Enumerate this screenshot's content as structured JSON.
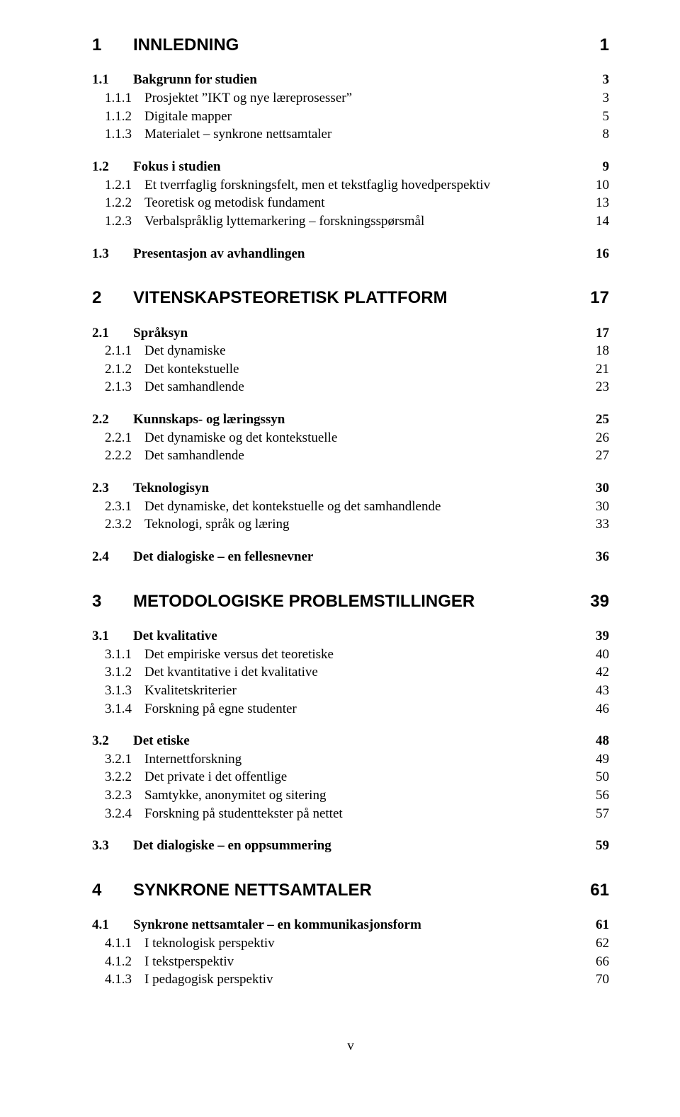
{
  "footer": "v",
  "toc": [
    {
      "level": 1,
      "num": "1",
      "title": "INNLEDNING",
      "page": "1"
    },
    {
      "level": 2,
      "num": "1.1",
      "title": "Bakgrunn for studien",
      "page": "3"
    },
    {
      "level": 3,
      "num": "1.1.1",
      "title": "Prosjektet ”IKT og nye læreprosesser”",
      "page": "3"
    },
    {
      "level": 3,
      "num": "1.1.2",
      "title": "Digitale mapper",
      "page": "5"
    },
    {
      "level": 3,
      "num": "1.1.3",
      "title": "Materialet – synkrone nettsamtaler",
      "page": "8"
    },
    {
      "level": 2,
      "num": "1.2",
      "title": "Fokus i studien",
      "page": "9"
    },
    {
      "level": 3,
      "num": "1.2.1",
      "title": "Et tverrfaglig forskningsfelt, men et tekstfaglig hovedperspektiv",
      "page": "10"
    },
    {
      "level": 3,
      "num": "1.2.2",
      "title": "Teoretisk og metodisk fundament",
      "page": "13"
    },
    {
      "level": 3,
      "num": "1.2.3",
      "title": "Verbalspråklig  lyttemarkering – forskningsspørsmål",
      "page": "14"
    },
    {
      "level": 2,
      "num": "1.3",
      "title": "Presentasjon av avhandlingen",
      "page": "16"
    },
    {
      "level": 1,
      "num": "2",
      "title": "VITENSKAPSTEORETISK PLATTFORM",
      "page": "17"
    },
    {
      "level": 2,
      "num": "2.1",
      "title": "Språksyn",
      "page": "17"
    },
    {
      "level": 3,
      "num": "2.1.1",
      "title": "Det dynamiske",
      "page": "18"
    },
    {
      "level": 3,
      "num": "2.1.2",
      "title": "Det kontekstuelle",
      "page": "21"
    },
    {
      "level": 3,
      "num": "2.1.3",
      "title": "Det samhandlende",
      "page": "23"
    },
    {
      "level": 2,
      "num": "2.2",
      "title": "Kunnskaps- og læringssyn",
      "page": "25"
    },
    {
      "level": 3,
      "num": "2.2.1",
      "title": "Det dynamiske og det kontekstuelle",
      "page": "26"
    },
    {
      "level": 3,
      "num": "2.2.2",
      "title": "Det samhandlende",
      "page": "27"
    },
    {
      "level": 2,
      "num": "2.3",
      "title": "Teknologisyn",
      "page": "30"
    },
    {
      "level": 3,
      "num": "2.3.1",
      "title": "Det dynamiske, det kontekstuelle og det samhandlende",
      "page": "30"
    },
    {
      "level": 3,
      "num": "2.3.2",
      "title": "Teknologi, språk og læring",
      "page": "33"
    },
    {
      "level": 2,
      "num": "2.4",
      "title": "Det dialogiske – en fellesnevner",
      "page": "36"
    },
    {
      "level": 1,
      "num": "3",
      "title": "METODOLOGISKE PROBLEMSTILLINGER",
      "page": "39"
    },
    {
      "level": 2,
      "num": "3.1",
      "title": "Det kvalitative",
      "page": "39"
    },
    {
      "level": 3,
      "num": "3.1.1",
      "title": "Det empiriske versus det teoretiske",
      "page": "40"
    },
    {
      "level": 3,
      "num": "3.1.2",
      "title": "Det kvantitative i det kvalitative",
      "page": "42"
    },
    {
      "level": 3,
      "num": "3.1.3",
      "title": "Kvalitetskriterier",
      "page": "43"
    },
    {
      "level": 3,
      "num": "3.1.4",
      "title": "Forskning på egne studenter",
      "page": "46"
    },
    {
      "level": 2,
      "num": "3.2",
      "title": "Det etiske",
      "page": "48"
    },
    {
      "level": 3,
      "num": "3.2.1",
      "title": "Internettforskning",
      "page": "49"
    },
    {
      "level": 3,
      "num": "3.2.2",
      "title": "Det private i det offentlige",
      "page": "50"
    },
    {
      "level": 3,
      "num": "3.2.3",
      "title": "Samtykke, anonymitet og sitering",
      "page": "56"
    },
    {
      "level": 3,
      "num": "3.2.4",
      "title": "Forskning på studenttekster på nettet",
      "page": "57"
    },
    {
      "level": 2,
      "num": "3.3",
      "title": "Det dialogiske – en oppsummering",
      "page": "59"
    },
    {
      "level": 1,
      "num": "4",
      "title": "SYNKRONE NETTSAMTALER",
      "page": "61"
    },
    {
      "level": 2,
      "num": "4.1",
      "title": "Synkrone nettsamtaler – en kommunikasjonsform",
      "page": "61"
    },
    {
      "level": 3,
      "num": "4.1.1",
      "title": "I teknologisk perspektiv",
      "page": "62"
    },
    {
      "level": 3,
      "num": "4.1.2",
      "title": "I tekstperspektiv",
      "page": "66"
    },
    {
      "level": 3,
      "num": "4.1.3",
      "title": "I pedagogisk perspektiv",
      "page": "70"
    }
  ]
}
